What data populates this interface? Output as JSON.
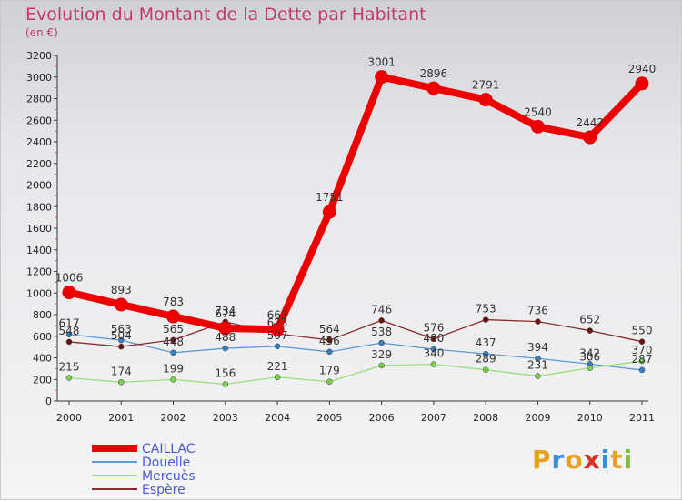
{
  "header": {
    "title": "Evolution du Montant de la Dette par Habitant",
    "subtitle": "(en €)"
  },
  "logo": {
    "text": "Proxiti",
    "colors": [
      "#e8a21a",
      "#3b8fd6",
      "#e8a21a",
      "#d93025",
      "#3b8fd6",
      "#e8a21a",
      "#7fbf3f"
    ]
  },
  "chart_data": {
    "type": "line",
    "title": "Evolution du Montant de la Dette par Habitant",
    "subtitle": "(en €)",
    "x": [
      "2000",
      "2001",
      "2002",
      "2003",
      "2004",
      "2005",
      "2006",
      "2007",
      "2008",
      "2009",
      "2010",
      "2011"
    ],
    "ylim": [
      0,
      3200
    ],
    "yticks": [
      0,
      200,
      400,
      600,
      800,
      1000,
      1200,
      1400,
      1600,
      1800,
      2000,
      2200,
      2400,
      2600,
      2800,
      3000,
      3200
    ],
    "grid": false,
    "legend_position": "bottom-left",
    "series": [
      {
        "name": "CAILLAC",
        "color": "#ee0000",
        "marker": "#dd0000",
        "values": [
          1006,
          893,
          783,
          674,
          663,
          1751,
          3001,
          2896,
          2791,
          2540,
          2442,
          2940
        ]
      },
      {
        "name": "Douelle",
        "color": "#5b9bd5",
        "marker": "#3a7fc1",
        "values": [
          617,
          563,
          448,
          488,
          507,
          456,
          538,
          480,
          437,
          394,
          342,
          287
        ]
      },
      {
        "name": "Mercuès",
        "color": "#99e07a",
        "marker": "#7bd24d",
        "values": [
          215,
          174,
          199,
          156,
          221,
          179,
          329,
          340,
          289,
          231,
          306,
          370
        ]
      },
      {
        "name": "Espère",
        "color": "#8b2b2b",
        "marker": "#6e1111",
        "values": [
          548,
          504,
          565,
          734,
          623,
          564,
          746,
          576,
          753,
          736,
          652,
          550
        ]
      }
    ]
  }
}
